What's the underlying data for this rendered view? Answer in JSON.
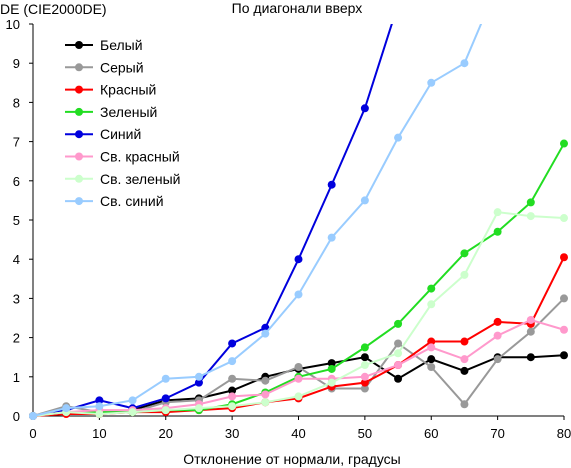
{
  "chart_data": {
    "type": "line",
    "title": "По диагонали вверх",
    "xlabel": "Отклонение от нормали, градусы",
    "ylabel": "DE (CIE2000DE)",
    "xlim": [
      0,
      80
    ],
    "ylim": [
      0,
      10
    ],
    "x_ticks": [
      0,
      10,
      20,
      30,
      40,
      50,
      60,
      70,
      80
    ],
    "y_ticks": [
      0,
      1,
      2,
      3,
      4,
      5,
      6,
      7,
      8,
      9,
      10
    ],
    "grid": false,
    "legend_position": "top-left",
    "x": [
      0,
      5,
      10,
      15,
      20,
      25,
      30,
      35,
      40,
      45,
      50,
      55,
      60,
      65,
      70,
      75,
      80
    ],
    "series": [
      {
        "name": "Белый",
        "color": "#000000",
        "values": [
          0.0,
          0.1,
          0.1,
          0.15,
          0.4,
          0.45,
          0.65,
          1.0,
          1.2,
          1.35,
          1.5,
          0.95,
          1.45,
          1.15,
          1.5,
          1.5,
          1.55
        ]
      },
      {
        "name": "Серый",
        "color": "#999999",
        "values": [
          0.0,
          0.25,
          0.1,
          0.1,
          0.35,
          0.4,
          0.95,
          0.9,
          1.25,
          0.7,
          0.7,
          1.85,
          1.25,
          0.3,
          1.45,
          2.15,
          3.0
        ]
      },
      {
        "name": "Красный",
        "color": "#ff0000",
        "values": [
          0.0,
          0.05,
          0.05,
          0.1,
          0.1,
          0.15,
          0.2,
          0.35,
          0.45,
          0.75,
          0.85,
          1.3,
          1.9,
          1.9,
          2.4,
          2.35,
          4.05
        ]
      },
      {
        "name": "Зеленый",
        "color": "#22dd22",
        "values": [
          0.0,
          0.1,
          0.1,
          0.1,
          0.15,
          0.15,
          0.3,
          0.6,
          1.0,
          1.2,
          1.75,
          2.35,
          3.25,
          4.15,
          4.7,
          5.45,
          6.95
        ]
      },
      {
        "name": "Синий",
        "color": "#0000dd",
        "values": [
          0.0,
          0.15,
          0.4,
          0.2,
          0.45,
          0.85,
          1.85,
          2.25,
          4.0,
          5.9,
          7.85,
          10.5,
          null,
          null,
          null,
          null,
          null
        ]
      },
      {
        "name": "Св. красный",
        "color": "#ff99cc",
        "values": [
          0.0,
          0.1,
          0.15,
          0.15,
          0.2,
          0.3,
          0.5,
          0.55,
          0.95,
          0.95,
          1.0,
          1.3,
          1.75,
          1.45,
          2.05,
          2.45,
          2.2
        ]
      },
      {
        "name": "Св. зеленый",
        "color": "#ccffcc",
        "values": [
          0.0,
          0.1,
          0.05,
          0.1,
          0.15,
          0.2,
          0.25,
          0.35,
          0.5,
          0.85,
          1.3,
          1.6,
          2.85,
          3.6,
          5.2,
          5.1,
          5.05
        ]
      },
      {
        "name": "Св. синий",
        "color": "#99ccff",
        "values": [
          0.0,
          0.2,
          0.25,
          0.4,
          0.95,
          1.0,
          1.4,
          2.1,
          3.1,
          4.55,
          5.5,
          7.1,
          8.5,
          9.0,
          11.0,
          null,
          null
        ]
      }
    ]
  }
}
